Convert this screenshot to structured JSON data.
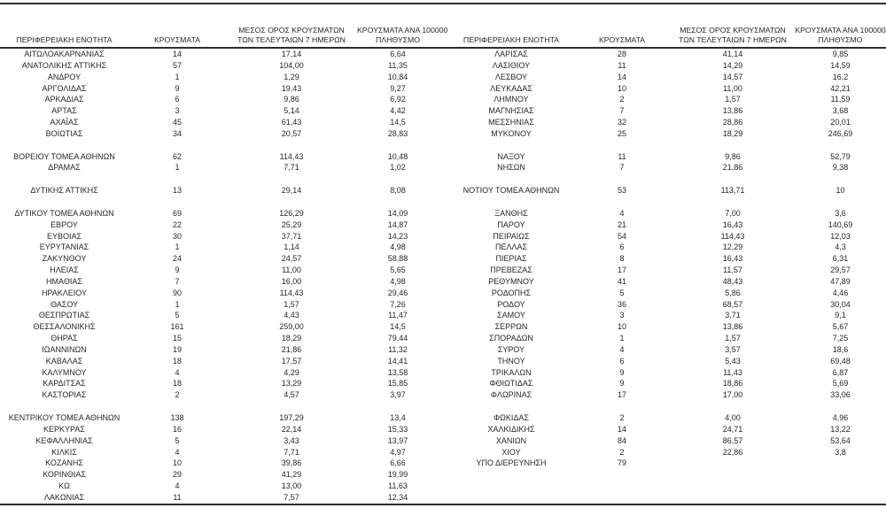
{
  "header": {
    "region": "ΠΕΡΙΦΕΡΕΙΑΚΗ ΕΝΟΤΗΤΑ",
    "cases": "ΚΡΟΥΣΜΑΤΑ",
    "avg7_line1": "ΜΕΣΟΣ ΟΡΟΣ ΚΡΟΥΣΜΑΤΩΝ",
    "avg7_line2": "ΤΩΝ ΤΕΛΕΥΤΑΙΩΝ 7 ΗΜΕΡΩΝ",
    "per100k_line1": "ΚΡΟΥΣΜΑΤΑ ΑΝΑ 100000",
    "per100k_line2": "ΠΛΗΘΥΣΜΟ"
  },
  "text_color": "#262626",
  "rule_color": "#2b2b2b",
  "left_table": {
    "rows": [
      {
        "region": "ΑΙΤΩΛΟΑΚΑΡΝΑΝΙΑΣ",
        "cases": "14",
        "avg7": "17,14",
        "per100k": "6,64"
      },
      {
        "region": "ΑΝΑΤΟΛΙΚΗΣ ΑΤΤΙΚΗΣ",
        "cases": "57",
        "avg7": "104,00",
        "per100k": "11,35"
      },
      {
        "region": "ΑΝΔΡΟΥ",
        "cases": "1",
        "avg7": "1,29",
        "per100k": "10,84"
      },
      {
        "region": "ΑΡΓΟΛΙΔΑΣ",
        "cases": "9",
        "avg7": "19,43",
        "per100k": "9,27"
      },
      {
        "region": "ΑΡΚΑΔΙΑΣ",
        "cases": "6",
        "avg7": "9,86",
        "per100k": "6,92"
      },
      {
        "region": "ΑΡΤΑΣ",
        "cases": "3",
        "avg7": "5,14",
        "per100k": "4,42"
      },
      {
        "region": "ΑΧΑΪΑΣ",
        "cases": "45",
        "avg7": "61,43",
        "per100k": "14,5"
      },
      {
        "region": "ΒΟΙΩΤΙΑΣ",
        "cases": "34",
        "avg7": "20,57",
        "per100k": "28,83"
      },
      null,
      {
        "region": "ΒΟΡΕΙΟΥ ΤΟΜΕΑ ΑΘΗΝΩΝ",
        "cases": "62",
        "avg7": "114,43",
        "per100k": "10,48"
      },
      {
        "region": "ΔΡΑΜΑΣ",
        "cases": "1",
        "avg7": "7,71",
        "per100k": "1,02"
      },
      null,
      {
        "region": "ΔΥΤΙΚΗΣ ΑΤΤΙΚΗΣ",
        "cases": "13",
        "avg7": "29,14",
        "per100k": "8,08"
      },
      null,
      {
        "region": "ΔΥΤΙΚΟΥ ΤΟΜΕΑ ΑΘΗΝΩΝ",
        "cases": "69",
        "avg7": "126,29",
        "per100k": "14,09"
      },
      {
        "region": "ΕΒΡΟΥ",
        "cases": "22",
        "avg7": "25,29",
        "per100k": "14,87"
      },
      {
        "region": "ΕΥΒΟΙΑΣ",
        "cases": "30",
        "avg7": "37,71",
        "per100k": "14,23"
      },
      {
        "region": "ΕΥΡΥΤΑΝΙΑΣ",
        "cases": "1",
        "avg7": "1,14",
        "per100k": "4,98"
      },
      {
        "region": "ΖΑΚΥΝΘΟΥ",
        "cases": "24",
        "avg7": "24,57",
        "per100k": "58,88"
      },
      {
        "region": "ΗΛΕΙΑΣ",
        "cases": "9",
        "avg7": "11,00",
        "per100k": "5,65"
      },
      {
        "region": "ΗΜΑΘΙΑΣ",
        "cases": "7",
        "avg7": "16,00",
        "per100k": "4,98"
      },
      {
        "region": "ΗΡΑΚΛΕΙΟΥ",
        "cases": "90",
        "avg7": "114,43",
        "per100k": "29,46"
      },
      {
        "region": "ΘΑΣΟΥ",
        "cases": "1",
        "avg7": "1,57",
        "per100k": "7,26"
      },
      {
        "region": "ΘΕΣΠΡΩΤΙΑΣ",
        "cases": "5",
        "avg7": "4,43",
        "per100k": "11,47"
      },
      {
        "region": "ΘΕΣΣΑΛΟΝΙΚΗΣ",
        "cases": "161",
        "avg7": "259,00",
        "per100k": "14,5"
      },
      {
        "region": "ΘΗΡΑΣ",
        "cases": "15",
        "avg7": "18,29",
        "per100k": "79,44"
      },
      {
        "region": "ΙΩΑΝΝΙΝΩΝ",
        "cases": "19",
        "avg7": "21,86",
        "per100k": "11,32"
      },
      {
        "region": "ΚΑΒΑΛΑΣ",
        "cases": "18",
        "avg7": "17,57",
        "per100k": "14,41"
      },
      {
        "region": "ΚΑΛΥΜΝΟΥ",
        "cases": "4",
        "avg7": "4,29",
        "per100k": "13,58"
      },
      {
        "region": "ΚΑΡΔΙΤΣΑΣ",
        "cases": "18",
        "avg7": "13,29",
        "per100k": "15,85"
      },
      {
        "region": "ΚΑΣΤΟΡΙΑΣ",
        "cases": "2",
        "avg7": "4,57",
        "per100k": "3,97"
      },
      null,
      {
        "region": "ΚΕΝΤΡΙΚΟΥ ΤΟΜΕΑ ΑΘΗΝΩΝ",
        "cases": "138",
        "avg7": "197,29",
        "per100k": "13,4"
      },
      {
        "region": "ΚΕΡΚΥΡΑΣ",
        "cases": "16",
        "avg7": "22,14",
        "per100k": "15,33"
      },
      {
        "region": "ΚΕΦΑΛΛΗΝΙΑΣ",
        "cases": "5",
        "avg7": "3,43",
        "per100k": "13,97"
      },
      {
        "region": "ΚΙΛΚΙΣ",
        "cases": "4",
        "avg7": "7,71",
        "per100k": "4,97"
      },
      {
        "region": "ΚΟΖΑΝΗΣ",
        "cases": "10",
        "avg7": "39,86",
        "per100k": "6,66"
      },
      {
        "region": "ΚΟΡΙΝΘΙΑΣ",
        "cases": "29",
        "avg7": "41,29",
        "per100k": "19,99"
      },
      {
        "region": "ΚΩ",
        "cases": "4",
        "avg7": "13,00",
        "per100k": "11,63"
      },
      {
        "region": "ΛΑΚΩΝΙΑΣ",
        "cases": "11",
        "avg7": "7,57",
        "per100k": "12,34"
      }
    ]
  },
  "right_table": {
    "rows": [
      {
        "region": "ΛΑΡΙΣΑΣ",
        "cases": "28",
        "avg7": "41,14",
        "per100k": "9,85"
      },
      {
        "region": "ΛΑΣΙΘΙΟΥ",
        "cases": "11",
        "avg7": "14,29",
        "per100k": "14,59"
      },
      {
        "region": "ΛΕΣΒΟΥ",
        "cases": "14",
        "avg7": "14,57",
        "per100k": "16,2"
      },
      {
        "region": "ΛΕΥΚΑΔΑΣ",
        "cases": "10",
        "avg7": "11,00",
        "per100k": "42,21"
      },
      {
        "region": "ΛΗΜΝΟΥ",
        "cases": "2",
        "avg7": "1,57",
        "per100k": "11,59"
      },
      {
        "region": "ΜΑΓΝΗΣΙΑΣ",
        "cases": "7",
        "avg7": "13,86",
        "per100k": "3,68"
      },
      {
        "region": "ΜΕΣΣΗΝΙΑΣ",
        "cases": "32",
        "avg7": "28,86",
        "per100k": "20,01"
      },
      {
        "region": "ΜΥΚΟΝΟΥ",
        "cases": "25",
        "avg7": "18,29",
        "per100k": "246,69"
      },
      null,
      {
        "region": "ΝΑΞΟΥ",
        "cases": "11",
        "avg7": "9,86",
        "per100k": "52,79"
      },
      {
        "region": "ΝΗΣΩΝ",
        "cases": "7",
        "avg7": "21,86",
        "per100k": "9,38"
      },
      null,
      {
        "region": "ΝΟΤΙΟΥ ΤΟΜΕΑ ΑΘΗΝΩΝ",
        "cases": "53",
        "avg7": "113,71",
        "per100k": "10"
      },
      null,
      {
        "region": "ΞΑΝΘΗΣ",
        "cases": "4",
        "avg7": "7,00",
        "per100k": "3,6"
      },
      {
        "region": "ΠΑΡΟΥ",
        "cases": "21",
        "avg7": "16,43",
        "per100k": "140,69"
      },
      {
        "region": "ΠΕΙΡΑΙΩΣ",
        "cases": "54",
        "avg7": "114,43",
        "per100k": "12,03"
      },
      {
        "region": "ΠΕΛΛΑΣ",
        "cases": "6",
        "avg7": "12,29",
        "per100k": "4,3"
      },
      {
        "region": "ΠΙΕΡΙΑΣ",
        "cases": "8",
        "avg7": "16,43",
        "per100k": "6,31"
      },
      {
        "region": "ΠΡΕΒΕΖΑΣ",
        "cases": "17",
        "avg7": "11,57",
        "per100k": "29,57"
      },
      {
        "region": "ΡΕΘΥΜΝΟΥ",
        "cases": "41",
        "avg7": "48,43",
        "per100k": "47,89"
      },
      {
        "region": "ΡΟΔΟΠΗΣ",
        "cases": "5",
        "avg7": "5,86",
        "per100k": "4,46"
      },
      {
        "region": "ΡΟΔΟΥ",
        "cases": "36",
        "avg7": "68,57",
        "per100k": "30,04"
      },
      {
        "region": "ΣΑΜΟΥ",
        "cases": "3",
        "avg7": "3,71",
        "per100k": "9,1"
      },
      {
        "region": "ΣΕΡΡΩΝ",
        "cases": "10",
        "avg7": "13,86",
        "per100k": "5,67"
      },
      {
        "region": "ΣΠΟΡΑΔΩΝ",
        "cases": "1",
        "avg7": "1,57",
        "per100k": "7,25"
      },
      {
        "region": "ΣΥΡΟΥ",
        "cases": "4",
        "avg7": "3,57",
        "per100k": "18,6"
      },
      {
        "region": "ΤΗΝΟΥ",
        "cases": "6",
        "avg7": "5,43",
        "per100k": "69,48"
      },
      {
        "region": "ΤΡΙΚΑΛΩΝ",
        "cases": "9",
        "avg7": "11,43",
        "per100k": "6,87"
      },
      {
        "region": "ΦΘΙΩΤΙΔΑΣ",
        "cases": "9",
        "avg7": "18,86",
        "per100k": "5,69"
      },
      {
        "region": "ΦΛΩΡΙΝΑΣ",
        "cases": "17",
        "avg7": "17,00",
        "per100k": "33,06"
      },
      null,
      {
        "region": "ΦΩΚΙΔΑΣ",
        "cases": "2",
        "avg7": "4,00",
        "per100k": "4,96"
      },
      {
        "region": "ΧΑΛΚΙΔΙΚΗΣ",
        "cases": "14",
        "avg7": "24,71",
        "per100k": "13,22"
      },
      {
        "region": "ΧΑΝΙΩΝ",
        "cases": "84",
        "avg7": "86,57",
        "per100k": "53,64"
      },
      {
        "region": "ΧΙΟΥ",
        "cases": "2",
        "avg7": "22,86",
        "per100k": "3,8"
      },
      {
        "region": "ΥΠΟ ΔΙΕΡΕΥΝΗΣΗ",
        "cases": "79",
        "avg7": "",
        "per100k": ""
      },
      null,
      null,
      null
    ]
  }
}
